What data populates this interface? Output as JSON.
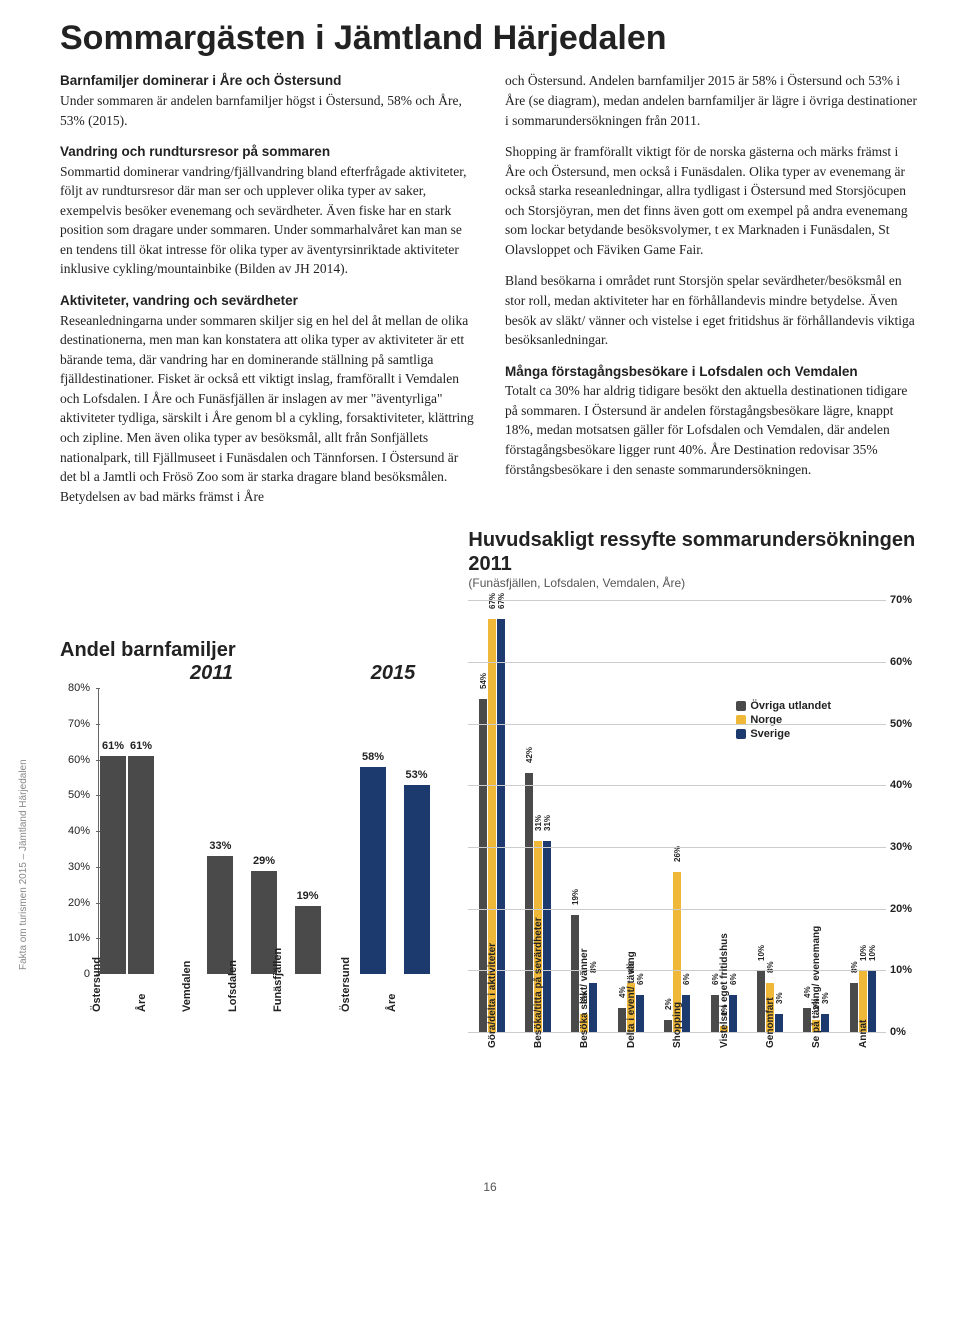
{
  "side_label": "Fakta om turismen 2015 – Jämtland Härjedalen",
  "title": "Sommargästen i Jämtland Härjedalen",
  "col_left": {
    "lead_bold": "Barnfamiljer dominerar i Åre och Östersund",
    "lead_rest": "Under sommaren är andelen barnfamiljer högst i Östersund, 58% och Åre, 53% (2015).",
    "p2_bold": "Vandring och rundtursresor på sommaren",
    "p2_rest": "Sommartid dominerar vandring/fjällvandring bland efterfrågade aktiviteter, följt av rundtursresor där man ser och upplever olika typer av saker, exempelvis besöker evenemang och sevärdheter. Även fiske har en stark position som dragare under sommaren. Under sommarhalvåret kan man se en tendens till ökat intresse för olika typer av äventyrsinriktade aktiviteter inklusive cykling/mountainbike (Bilden av JH 2014).",
    "p3_bold": "Aktiviteter, vandring och sevärdheter",
    "p3_rest": "Reseanledningarna under sommaren skiljer sig en hel del åt mellan de olika destinationerna, men man kan konstatera att olika typer av aktiviteter är ett bärande tema, där vandring har en dominerande ställning på samtliga fjälldestinationer. Fisket är också ett viktigt inslag, framförallt i Vemdalen och Lofsdalen. I Åre och Funäsfjällen är inslagen av mer \"äventyrliga\" aktiviteter tydliga, särskilt i Åre genom bl a cykling, forsaktiviteter, klättring och zipline. Men även olika typer av besöksmål, allt från Sonfjällets nationalpark, till Fjällmuseet i Funäsdalen och Tännforsen. I Östersund är det bl a Jamtli och Frösö Zoo som är starka dragare bland besöksmålen. Betydelsen av bad märks främst i Åre"
  },
  "col_right": {
    "p1": "och Östersund. Andelen barnfamiljer 2015 är 58% i Östersund och 53% i Åre (se diagram), medan andelen barnfamiljer är lägre i övriga destinationer i sommarundersökningen från 2011.",
    "p2": "Shopping är framförallt viktigt för de norska gästerna och märks främst i Åre och Östersund, men också i Funäsdalen. Olika typer av evenemang är också starka reseanledningar, allra tydligast i Östersund med Storsjöcupen och Storsjöyran, men det finns även gott om exempel på andra evenemang som lockar betydande besöksvolymer, t ex Marknaden i Funäsdalen, St Olavsloppet och Fäviken Game Fair.",
    "p3": "Bland besökarna i området runt Storsjön spelar sevärdheter/besöksmål en stor roll, medan aktiviteter har en förhållandevis mindre betydelse. Även besök av släkt/ vänner och vistelse i eget fritidshus är förhållandevis viktiga besöksanledningar.",
    "p4_bold": "Många förstagångsbesökare i Lofsdalen och Vemdalen",
    "p4_rest": "Totalt ca 30% har aldrig tidigare besökt den aktuella destinationen tidigare på sommaren. I Östersund är andelen förstagångsbesökare lägre, knappt 18%, medan motsatsen gäller för Lofsdalen och Vemdalen, där andelen förstagångsbesökare ligger runt 40%. Åre Destination redovisar 35% förstångsbesökare i den senaste sommarundersökningen."
  },
  "chart1": {
    "title": "Andel barnfamiljer",
    "year_labels": [
      "2011",
      "2015"
    ],
    "y_max": 80,
    "y_ticks": [
      0,
      10,
      20,
      30,
      40,
      50,
      60,
      70,
      80
    ],
    "colors": {
      "2011": "#4a4a4a",
      "2015": "#1d3a6e"
    },
    "groups": [
      {
        "label": "Östersund",
        "bars": [
          {
            "v": 61,
            "c": "#4a4a4a"
          },
          {
            "v": 61,
            "c": "#4a4a4a"
          }
        ]
      },
      {
        "label": "Åre",
        "bars": [
          {
            "v": 0,
            "c": "#4a4a4a",
            "hide": true
          }
        ]
      },
      {
        "label": "Vemdalen",
        "bars": [
          {
            "v": 33,
            "c": "#4a4a4a"
          }
        ]
      },
      {
        "label": "Lofsdalen",
        "bars": [
          {
            "v": 29,
            "c": "#4a4a4a"
          }
        ]
      },
      {
        "label": "Funäsfjällen",
        "bars": [
          {
            "v": 19,
            "c": "#4a4a4a"
          }
        ]
      },
      {
        "gap": true
      },
      {
        "label": "Östersund",
        "bars": [
          {
            "v": 58,
            "c": "#1d3a6e"
          }
        ]
      },
      {
        "label": "Åre",
        "bars": [
          {
            "v": 53,
            "c": "#1d3a6e"
          }
        ]
      }
    ]
  },
  "chart2": {
    "title": "Huvudsakligt ressyfte sommarundersökningen 2011",
    "subtitle": "(Funäsfjällen, Lofsdalen, Vemdalen, Åre)",
    "y_max": 70,
    "y_ticks": [
      0,
      10,
      20,
      30,
      40,
      50,
      60,
      70
    ],
    "legend": [
      {
        "label": "Övriga utlandet",
        "color": "#4a4a4a"
      },
      {
        "label": "Norge",
        "color": "#f0b838"
      },
      {
        "label": "Sverige",
        "color": "#1d3a6e"
      }
    ],
    "groups": [
      {
        "label": "Göra/delta i aktiviteter",
        "bars": [
          {
            "v": 54,
            "c": "#4a4a4a"
          },
          {
            "v": 67,
            "c": "#f0b838"
          },
          {
            "v": 67,
            "c": "#1d3a6e"
          }
        ]
      },
      {
        "label": "Besöka/titta på sevärdheter",
        "bars": [
          {
            "v": 42,
            "c": "#4a4a4a"
          },
          {
            "v": 31,
            "c": "#f0b838",
            "blank": true
          },
          {
            "v": 31,
            "c": "#1d3a6e"
          }
        ]
      },
      {
        "label": "Besöka släkt/ vänner",
        "bars": [
          {
            "v": 19,
            "c": "#4a4a4a"
          },
          {
            "v": 3,
            "c": "#f0b838"
          },
          {
            "v": 8,
            "c": "#1d3a6e"
          }
        ]
      },
      {
        "label": "Delta i event/ tävling",
        "bars": [
          {
            "v": 4,
            "c": "#4a4a4a"
          },
          {
            "v": 8,
            "c": "#f0b838"
          },
          {
            "v": 6,
            "c": "#1d3a6e"
          }
        ]
      },
      {
        "label": "Shopping",
        "bars": [
          {
            "v": 2,
            "c": "#4a4a4a"
          },
          {
            "v": 26,
            "c": "#f0b838"
          },
          {
            "v": 6,
            "c": "#1d3a6e"
          }
        ]
      },
      {
        "label": "Vistelse i eget fritidshus",
        "bars": [
          {
            "v": 6,
            "c": "#4a4a4a"
          },
          {
            "v": 1,
            "c": "#f0b838"
          },
          {
            "v": 6,
            "c": "#1d3a6e"
          }
        ]
      },
      {
        "label": "Genomfart",
        "bars": [
          {
            "v": 10,
            "c": "#4a4a4a"
          },
          {
            "v": 8,
            "c": "#f0b838"
          },
          {
            "v": 3,
            "c": "#1d3a6e"
          }
        ]
      },
      {
        "label": "Se på tävling/ evenemang",
        "bars": [
          {
            "v": 4,
            "c": "#4a4a4a"
          },
          {
            "v": 2,
            "c": "#f0b838"
          },
          {
            "v": 3,
            "c": "#1d3a6e"
          }
        ]
      },
      {
        "label": "Annat",
        "bars": [
          {
            "v": 8,
            "c": "#4a4a4a"
          },
          {
            "v": 10,
            "c": "#f0b838"
          },
          {
            "v": 10,
            "c": "#1d3a6e"
          }
        ]
      }
    ]
  },
  "page_number": "16"
}
